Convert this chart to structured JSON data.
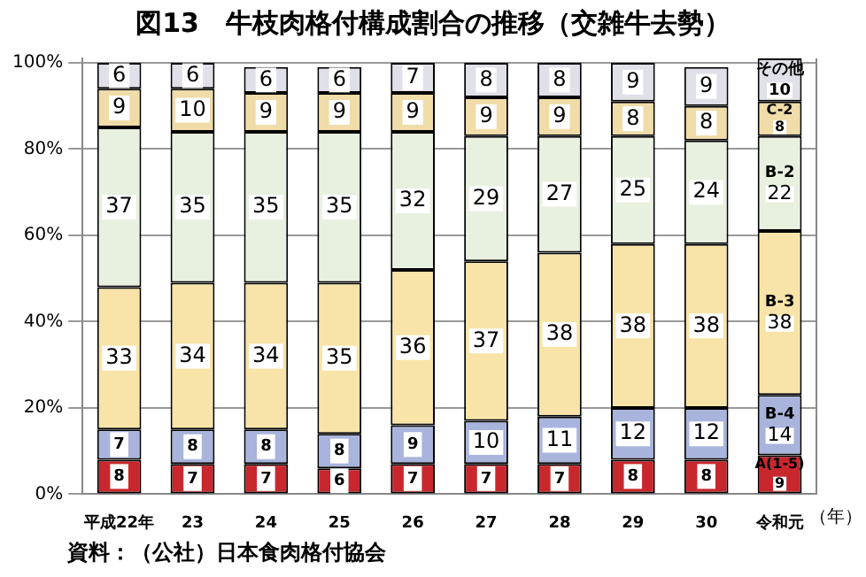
{
  "chart_data": {
    "type": "bar",
    "title": "図13　牛枝肉格付構成割合の推移（交雑牛去勢）",
    "xlabel": "（年）",
    "annotations": [
      "資料：（公社）日本食肉格付協会"
    ],
    "categories": [
      "平成22年",
      "23",
      "24",
      "25",
      "26",
      "27",
      "28",
      "29",
      "30",
      "令和元"
    ],
    "stacked": true,
    "data_labels": true,
    "legend": false,
    "grid": "y",
    "ylim": [
      0,
      101
    ],
    "yticks": [
      {
        "value": 0,
        "label": "0%"
      },
      {
        "value": 20,
        "label": "20%"
      },
      {
        "value": 40,
        "label": "40%"
      },
      {
        "value": 60,
        "label": "60%"
      },
      {
        "value": 80,
        "label": "80%"
      },
      {
        "value": 100,
        "label": "100%"
      }
    ],
    "series": [
      {
        "name": "A(1-5)",
        "color": "#c8282d",
        "values": [
          8,
          7,
          7,
          6,
          7,
          7,
          7,
          8,
          8,
          9
        ]
      },
      {
        "name": "B-4",
        "color": "#a8b4dc",
        "values": [
          7,
          8,
          8,
          8,
          9,
          10,
          11,
          12,
          12,
          14
        ]
      },
      {
        "name": "B-3",
        "color": "#f8e4a8",
        "values": [
          33,
          34,
          34,
          35,
          36,
          37,
          38,
          38,
          38,
          38
        ]
      },
      {
        "name": "B-2",
        "color": "#e8f0e0",
        "values": [
          37,
          35,
          35,
          35,
          32,
          29,
          27,
          25,
          24,
          22
        ]
      },
      {
        "name": "C-2",
        "color": "#f0dca8",
        "values": [
          9,
          10,
          9,
          9,
          9,
          9,
          9,
          8,
          8,
          8
        ]
      },
      {
        "name": "その他",
        "color": "#e0e0e8",
        "values": [
          6,
          6,
          6,
          6,
          7,
          8,
          8,
          9,
          9,
          10
        ]
      }
    ]
  }
}
